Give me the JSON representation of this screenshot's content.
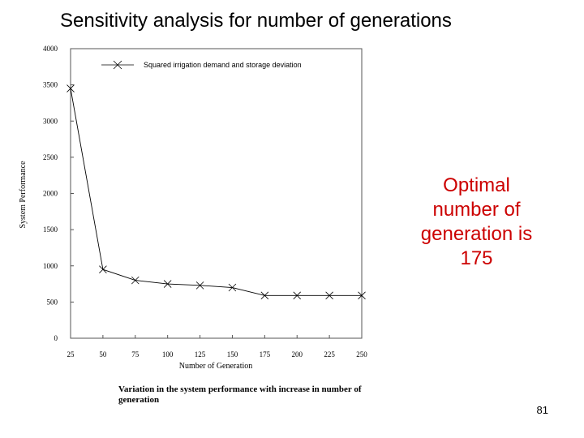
{
  "slide": {
    "title": "Sensitivity analysis for number of generations",
    "callout": "Optimal\nnumber of\ngeneration is\n175",
    "caption": "Variation in the system performance with increase in number of generation",
    "page_number": "81"
  },
  "chart_data": {
    "type": "line",
    "title": "",
    "xlabel": "Number of Generation",
    "ylabel": "System Performance",
    "x": [
      25,
      50,
      75,
      100,
      125,
      150,
      175,
      200,
      225,
      250
    ],
    "series": [
      {
        "name": "Squared irrigation demand and storage deviation",
        "values": [
          3450,
          950,
          800,
          750,
          730,
          700,
          590,
          590,
          590,
          590
        ]
      }
    ],
    "xticks": [
      "25",
      "50",
      "75",
      "100",
      "125",
      "150",
      "175",
      "200",
      "225",
      "250"
    ],
    "yticks": [
      "0",
      "500",
      "1000",
      "1500",
      "2000",
      "2500",
      "3000",
      "3500",
      "4000"
    ],
    "xlim": [
      25,
      250
    ],
    "ylim": [
      0,
      4000
    ],
    "grid": false,
    "legend_position": "top-left",
    "marker": "x",
    "line_color": "#000000",
    "callout_color": "#cc0000"
  }
}
